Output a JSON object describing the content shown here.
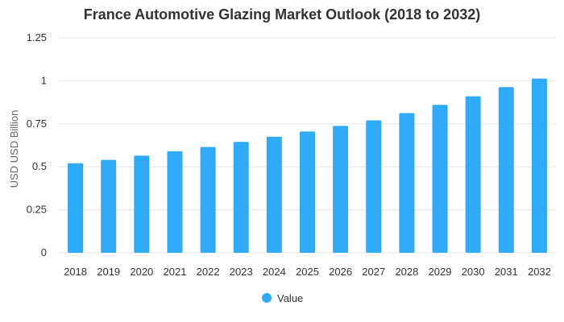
{
  "chart_data": {
    "type": "bar",
    "title": "France Automotive Glazing Market Outlook (2018 to 2032)",
    "xlabel": "",
    "ylabel": "USD USD Billion",
    "categories": [
      "2018",
      "2019",
      "2020",
      "2021",
      "2022",
      "2023",
      "2024",
      "2025",
      "2026",
      "2027",
      "2028",
      "2029",
      "2030",
      "2031",
      "2032"
    ],
    "series": [
      {
        "name": "Value",
        "values": [
          0.52,
          0.54,
          0.565,
          0.59,
          0.615,
          0.645,
          0.675,
          0.705,
          0.738,
          0.77,
          0.812,
          0.86,
          0.91,
          0.963,
          1.013
        ]
      }
    ],
    "yticks": [
      "0",
      "0.25",
      "0.5",
      "0.75",
      "1",
      "1.25"
    ],
    "ylim": [
      0,
      1.25
    ],
    "grid": true,
    "legend_position": "bottom",
    "colors": {
      "bar": "#2eaaf7",
      "grid": "#e6e6e6",
      "text": "#333333"
    }
  }
}
